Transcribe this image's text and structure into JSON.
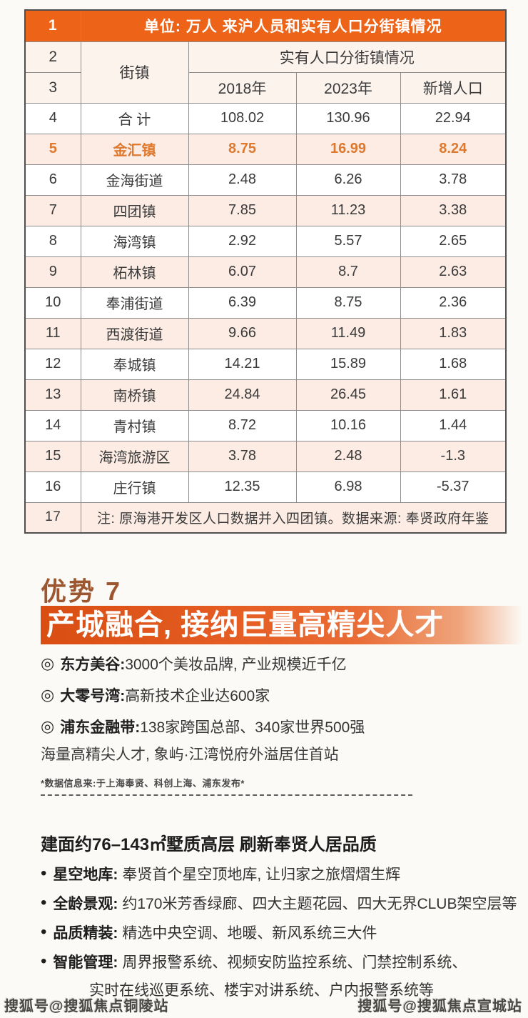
{
  "colors": {
    "header_orange": "#ed6318",
    "highlight_text": "#df792e",
    "pink_row_bg": "#fcece4",
    "header_row_bg": "#fdf3ed",
    "section_title_brown": "#9d5730",
    "banner_gradient_start": "#d94e12"
  },
  "table": {
    "unit_row": {
      "no": "1",
      "title": "单位: 万人 来沪人员和实有人口分街镇情况"
    },
    "header": {
      "no2": "2",
      "no3": "3",
      "town_col": "街镇",
      "group_title": "实有人口分街镇情况",
      "year_cols": [
        "2018年",
        "2023年",
        "新增人口"
      ]
    },
    "rows": [
      {
        "no": "4",
        "name": "合 计",
        "y2018": "108.02",
        "y2023": "130.96",
        "added": "22.94",
        "highlight": false
      },
      {
        "no": "5",
        "name": "金汇镇",
        "y2018": "8.75",
        "y2023": "16.99",
        "added": "8.24",
        "highlight": true
      },
      {
        "no": "6",
        "name": "金海街道",
        "y2018": "2.48",
        "y2023": "6.26",
        "added": "3.78",
        "highlight": false
      },
      {
        "no": "7",
        "name": "四团镇",
        "y2018": "7.85",
        "y2023": "11.23",
        "added": "3.38",
        "highlight": false
      },
      {
        "no": "8",
        "name": "海湾镇",
        "y2018": "2.92",
        "y2023": "5.57",
        "added": "2.65",
        "highlight": false
      },
      {
        "no": "9",
        "name": "柘林镇",
        "y2018": "6.07",
        "y2023": "8.7",
        "added": "2.63",
        "highlight": false
      },
      {
        "no": "10",
        "name": "奉浦街道",
        "y2018": "6.39",
        "y2023": "8.75",
        "added": "2.36",
        "highlight": false
      },
      {
        "no": "11",
        "name": "西渡街道",
        "y2018": "9.66",
        "y2023": "11.49",
        "added": "1.83",
        "highlight": false
      },
      {
        "no": "12",
        "name": "奉城镇",
        "y2018": "14.21",
        "y2023": "15.89",
        "added": "1.68",
        "highlight": false
      },
      {
        "no": "13",
        "name": "南桥镇",
        "y2018": "24.84",
        "y2023": "26.45",
        "added": "1.61",
        "highlight": false
      },
      {
        "no": "14",
        "name": "青村镇",
        "y2018": "8.72",
        "y2023": "10.16",
        "added": "1.44",
        "highlight": false
      },
      {
        "no": "15",
        "name": "海湾旅游区",
        "y2018": "3.78",
        "y2023": "2.48",
        "added": "-1.3",
        "highlight": false
      },
      {
        "no": "16",
        "name": "庄行镇",
        "y2018": "12.35",
        "y2023": "6.98",
        "added": "-5.37",
        "highlight": false
      }
    ],
    "note_row": {
      "no": "17",
      "text": "注: 原海港开发区人口数据并入四团镇。数据来源: 奉贤政府年鉴"
    }
  },
  "advantage": {
    "title": "优势 7",
    "banner": "产城融合, 接纳巨量高精尖人才",
    "points": [
      {
        "label": "东方美谷:",
        "text": "3000个美妆品牌, 产业规模近千亿"
      },
      {
        "label": "大零号湾:",
        "text": "高新技术企业达600家"
      },
      {
        "label": "浦东金融带:",
        "text": "138家跨国总部、340家世界500强"
      }
    ],
    "summary": "海量高精尖人才, 象屿·江湾悦府外溢居住首站",
    "footnote": "*数据信息来:于上海奉贤、科创上海、浦东发布*"
  },
  "product": {
    "headline": "建面约76–143㎡墅质高层 刷新奉贤人居品质",
    "features": [
      {
        "label": "星空地库:",
        "text": "奉贤首个星空顶地库, 让归家之旅熠熠生辉"
      },
      {
        "label": "全龄景观:",
        "text": "约170米芳香绿廊、四大主题花园、四大无界CLUB架空层等"
      },
      {
        "label": "品质精装:",
        "text": "精选中央空调、地暖、新风系统三大件"
      },
      {
        "label": "智能管理:",
        "text": "周界报警系统、视频安防监控系统、门禁控制系统、",
        "text2": "实时在线巡更系统、楼宇对讲系统、户内报警系统等"
      }
    ]
  },
  "watermarks": {
    "left": "搜狐号@搜狐焦点铜陵站",
    "right": "搜狐号@搜狐焦点宣城站"
  }
}
